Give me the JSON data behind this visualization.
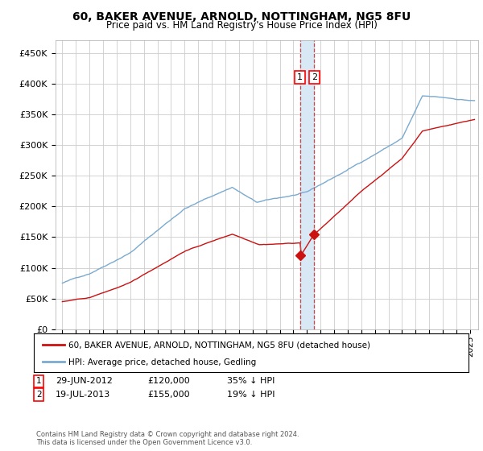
{
  "title": "60, BAKER AVENUE, ARNOLD, NOTTINGHAM, NG5 8FU",
  "subtitle": "Price paid vs. HM Land Registry's House Price Index (HPI)",
  "ytick_values": [
    0,
    50000,
    100000,
    150000,
    200000,
    250000,
    300000,
    350000,
    400000,
    450000
  ],
  "ylim": [
    0,
    470000
  ],
  "legend_line1": "60, BAKER AVENUE, ARNOLD, NOTTINGHAM, NG5 8FU (detached house)",
  "legend_line2": "HPI: Average price, detached house, Gedling",
  "marker1_date": 2012.49,
  "marker1_value": 120000,
  "marker2_date": 2013.54,
  "marker2_value": 155000,
  "footer": "Contains HM Land Registry data © Crown copyright and database right 2024.\nThis data is licensed under the Open Government Licence v3.0.",
  "hpi_color": "#7AAAD0",
  "price_color": "#CC1111",
  "grid_color": "#CCCCCC",
  "background_color": "#FFFFFF",
  "shade_color": "#D8E8F5"
}
